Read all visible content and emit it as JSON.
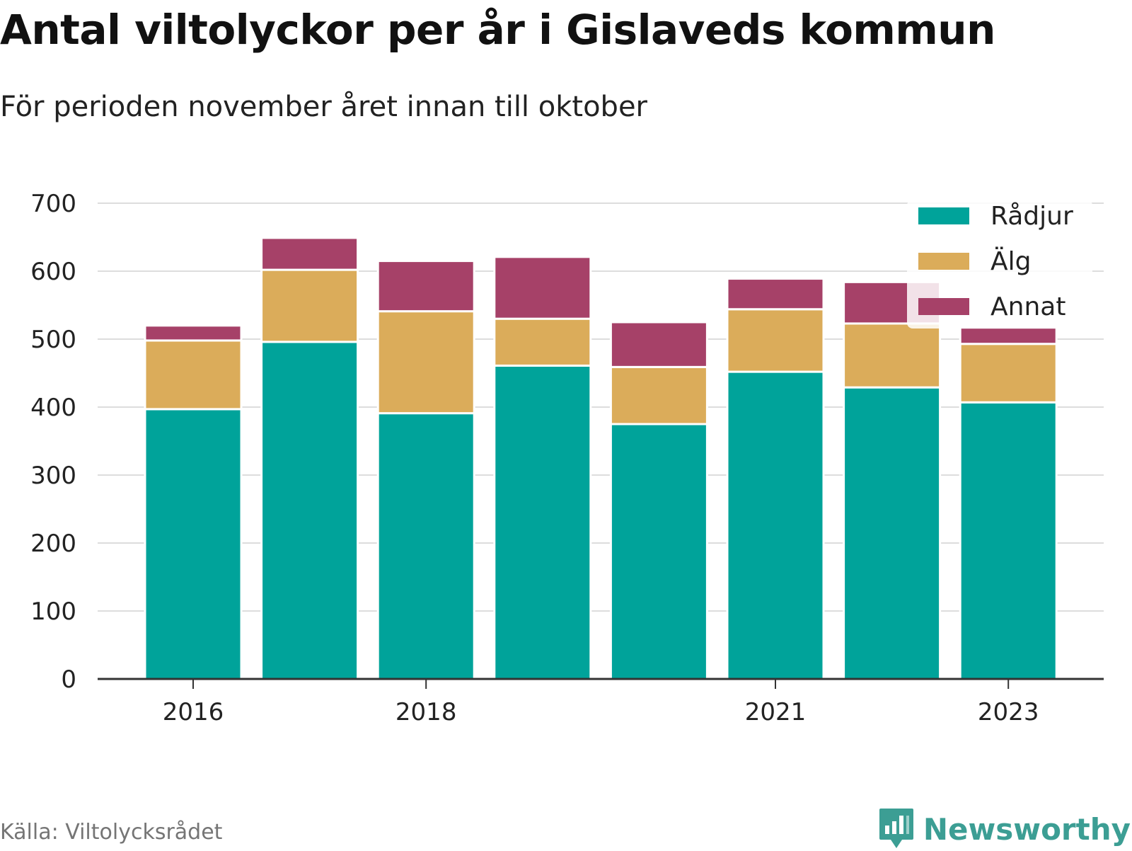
{
  "title": "Antal viltolyckor per år i Gislaveds kommun",
  "subtitle": "För perioden november året innan till oktober",
  "source": "Källa: Viltolycksrådet",
  "brand": "Newsworthy",
  "colors": {
    "Rådjur": "#00a39a",
    "Älg": "#dbac5a",
    "Annat": "#a64168",
    "grid": "#dddddd",
    "axis": "#333333",
    "brand": "#3c9e94"
  },
  "chart_data": {
    "type": "bar",
    "stacked": true,
    "categories": [
      "2016",
      "2017",
      "2018",
      "2019",
      "2020",
      "2021",
      "2022",
      "2023"
    ],
    "x_tick_labels": [
      "2016",
      "2018",
      "2021",
      "2023"
    ],
    "series": [
      {
        "name": "Rådjur",
        "values": [
          397,
          496,
          391,
          461,
          375,
          452,
          429,
          407
        ]
      },
      {
        "name": "Älg",
        "values": [
          101,
          106,
          150,
          69,
          84,
          92,
          94,
          86
        ]
      },
      {
        "name": "Annat",
        "values": [
          22,
          47,
          74,
          91,
          66,
          45,
          61,
          24
        ]
      }
    ],
    "ylim": [
      0,
      700
    ],
    "yticks": [
      0,
      100,
      200,
      300,
      400,
      500,
      600,
      700
    ],
    "grid": true,
    "legend_position": "top-right"
  }
}
